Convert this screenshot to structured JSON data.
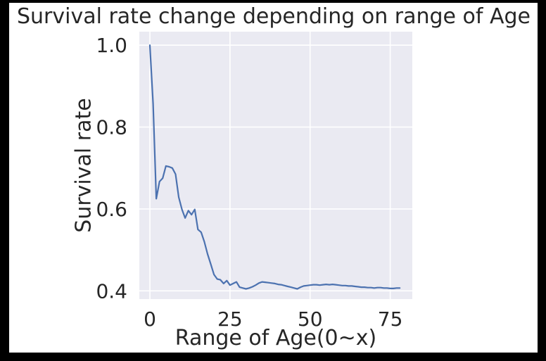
{
  "window": {
    "frame_color": "#000000",
    "figure_background": "#ffffff"
  },
  "chart_data": {
    "type": "line",
    "title": "Survival rate change depending on range of Age",
    "xlabel": "Range of Age(0~x)",
    "ylabel": "Survival rate",
    "xlim": [
      -3.3,
      81.9
    ],
    "ylim": [
      0.38,
      1.033
    ],
    "xticks": [
      0,
      25,
      50,
      75
    ],
    "yticks": [
      0.4,
      0.6,
      0.8,
      1.0
    ],
    "grid": true,
    "legend": false,
    "plot_bg": "#eaeaf2",
    "grid_color": "#ffffff",
    "line_color": "#4c72b0",
    "text_color": "#262626",
    "x": [
      0,
      1,
      2,
      3,
      4,
      5,
      6,
      7,
      8,
      9,
      10,
      11,
      12,
      13,
      14,
      15,
      16,
      17,
      18,
      19,
      20,
      21,
      22,
      23,
      24,
      25,
      26,
      27,
      28,
      29,
      30,
      31,
      32,
      33,
      34,
      35,
      36,
      37,
      38,
      39,
      40,
      41,
      42,
      43,
      44,
      45,
      46,
      47,
      48,
      49,
      50,
      51,
      52,
      53,
      54,
      55,
      56,
      57,
      58,
      59,
      60,
      61,
      62,
      63,
      64,
      65,
      66,
      67,
      68,
      69,
      70,
      71,
      72,
      73,
      74,
      75,
      76,
      77,
      78
    ],
    "y": [
      1.0,
      0.857,
      0.625,
      0.667,
      0.675,
      0.705,
      0.703,
      0.7,
      0.685,
      0.629,
      0.599,
      0.578,
      0.596,
      0.586,
      0.599,
      0.55,
      0.543,
      0.52,
      0.49,
      0.465,
      0.44,
      0.429,
      0.427,
      0.418,
      0.425,
      0.414,
      0.418,
      0.422,
      0.409,
      0.407,
      0.405,
      0.407,
      0.41,
      0.414,
      0.419,
      0.422,
      0.421,
      0.42,
      0.419,
      0.418,
      0.416,
      0.415,
      0.413,
      0.411,
      0.409,
      0.407,
      0.405,
      0.409,
      0.412,
      0.413,
      0.414,
      0.415,
      0.415,
      0.414,
      0.415,
      0.416,
      0.415,
      0.416,
      0.415,
      0.414,
      0.413,
      0.413,
      0.412,
      0.412,
      0.411,
      0.41,
      0.409,
      0.409,
      0.408,
      0.408,
      0.407,
      0.408,
      0.408,
      0.407,
      0.407,
      0.406,
      0.406,
      0.407,
      0.407
    ]
  }
}
